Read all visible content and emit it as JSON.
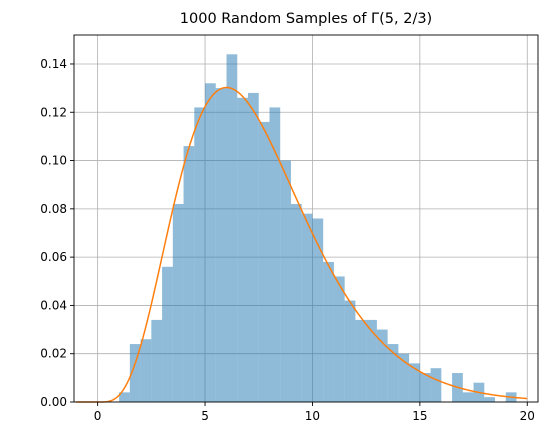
{
  "chart_data": {
    "type": "bar",
    "title": "1000 Random Samples of Γ(5, 2/3)",
    "xlabel": "",
    "ylabel": "",
    "xlim": [
      -1.1,
      20.5
    ],
    "ylim": [
      0,
      0.152
    ],
    "grid": true,
    "bin_edges_start": 1.0,
    "bin_width": 0.5,
    "x_ticks": [
      0,
      5,
      10,
      15,
      20
    ],
    "y_ticks": [
      0.0,
      0.02,
      0.04,
      0.06,
      0.08,
      0.1,
      0.12,
      0.14
    ],
    "x_tick_labels": [
      "0",
      "5",
      "10",
      "15",
      "20"
    ],
    "y_tick_labels": [
      "0.00",
      "0.02",
      "0.04",
      "0.06",
      "0.08",
      "0.10",
      "0.12",
      "0.14"
    ],
    "histogram_values": [
      0.004,
      0.024,
      0.026,
      0.034,
      0.056,
      0.082,
      0.106,
      0.122,
      0.132,
      0.13,
      0.144,
      0.126,
      0.128,
      0.116,
      0.122,
      0.1,
      0.082,
      0.078,
      0.076,
      0.058,
      0.052,
      0.042,
      0.034,
      0.034,
      0.03,
      0.024,
      0.02,
      0.016,
      0.012,
      0.014,
      0.0,
      0.012,
      0.004,
      0.008,
      0.002,
      0.0,
      0.004
    ],
    "pdf_curve": {
      "shape": 5,
      "rate": 0.6667,
      "x_range": [
        -1,
        20
      ]
    },
    "colors": {
      "bars": "#1f77b4",
      "bars_alpha": 0.5,
      "curve": "#ff7f0e",
      "grid": "#b0b0b0"
    }
  }
}
